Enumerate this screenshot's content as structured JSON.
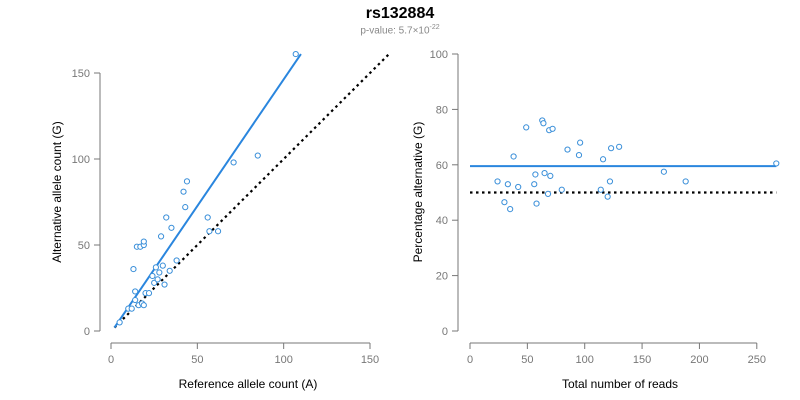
{
  "title": "rs132884",
  "subtitle_prefix": "p-value: 5.7×10",
  "subtitle_exponent": "-22",
  "colors": {
    "points": "#3a8fd9",
    "fit_line": "#2a86de",
    "reference_line": "#000000",
    "axis": "#777777"
  },
  "chart_data": [
    {
      "type": "scatter",
      "title": "",
      "xlabel": "Reference allele count (A)",
      "ylabel": "Alternative allele count (G)",
      "xlim": [
        0,
        150
      ],
      "ylim": [
        0,
        150
      ],
      "xticks": [
        0,
        50,
        100,
        150
      ],
      "yticks": [
        0,
        50,
        100,
        150
      ],
      "grid": false,
      "points": [
        [
          5,
          5
        ],
        [
          10,
          13
        ],
        [
          12,
          13
        ],
        [
          13,
          36
        ],
        [
          14,
          23
        ],
        [
          14,
          18
        ],
        [
          15,
          49
        ],
        [
          16,
          15
        ],
        [
          17,
          49
        ],
        [
          18,
          16
        ],
        [
          19,
          50
        ],
        [
          19,
          52
        ],
        [
          19,
          15
        ],
        [
          20,
          22
        ],
        [
          22,
          22
        ],
        [
          24,
          32
        ],
        [
          25,
          28
        ],
        [
          26,
          37
        ],
        [
          27,
          30
        ],
        [
          28,
          34
        ],
        [
          29,
          55
        ],
        [
          30,
          38
        ],
        [
          31,
          27
        ],
        [
          32,
          66
        ],
        [
          34,
          35
        ],
        [
          35,
          60
        ],
        [
          38,
          41
        ],
        [
          42,
          81
        ],
        [
          43,
          72
        ],
        [
          44,
          87
        ],
        [
          56,
          66
        ],
        [
          57,
          58
        ],
        [
          62,
          58
        ],
        [
          71,
          98
        ],
        [
          85,
          102
        ],
        [
          107,
          161
        ]
      ],
      "fit_line": [
        [
          2,
          2
        ],
        [
          110,
          161
        ]
      ],
      "reference_line": [
        [
          2,
          2
        ],
        [
          162,
          162
        ]
      ]
    },
    {
      "type": "scatter",
      "title": "",
      "xlabel": "Total number of reads",
      "ylabel": "Percentage alternative (G)",
      "xlim": [
        0,
        265
      ],
      "ylim": [
        0,
        100
      ],
      "xticks": [
        0,
        50,
        100,
        150,
        200,
        250
      ],
      "yticks": [
        0,
        20,
        40,
        60,
        80,
        100
      ],
      "grid": false,
      "points": [
        [
          24,
          54
        ],
        [
          30,
          46.5
        ],
        [
          33,
          53
        ],
        [
          35,
          44
        ],
        [
          38,
          63
        ],
        [
          42,
          52
        ],
        [
          49,
          73.5
        ],
        [
          56,
          53
        ],
        [
          57,
          56.5
        ],
        [
          58,
          46
        ],
        [
          63,
          76
        ],
        [
          64,
          75
        ],
        [
          65,
          57
        ],
        [
          68,
          49.5
        ],
        [
          69,
          72.5
        ],
        [
          70,
          56
        ],
        [
          72,
          73
        ],
        [
          80,
          51
        ],
        [
          85,
          65.5
        ],
        [
          95,
          63.5
        ],
        [
          96,
          68
        ],
        [
          114,
          51
        ],
        [
          116,
          62
        ],
        [
          120,
          48.5
        ],
        [
          122,
          54
        ],
        [
          123,
          66
        ],
        [
          130,
          66.5
        ],
        [
          169,
          57.5
        ],
        [
          188,
          54
        ],
        [
          267,
          60.5
        ]
      ],
      "fit_line": [
        [
          0,
          59.5
        ],
        [
          267,
          59.5
        ]
      ],
      "reference_line": [
        [
          0,
          50
        ],
        [
          267,
          50
        ]
      ]
    }
  ]
}
